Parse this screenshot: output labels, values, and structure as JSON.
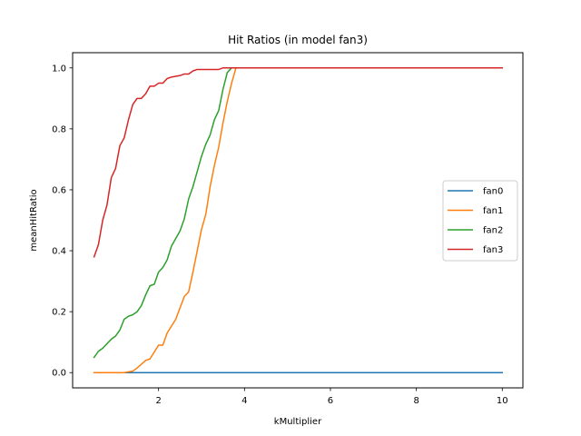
{
  "chart_data": {
    "type": "line",
    "title": "Hit Ratios (in model fan3)",
    "xlabel": "kMultiplier",
    "ylabel": "meanHitRatio",
    "xlim": [
      0.0,
      10.48
    ],
    "ylim": [
      -0.05,
      1.05
    ],
    "xticks": [
      2,
      4,
      6,
      8,
      10
    ],
    "xtick_labels": [
      "2",
      "4",
      "6",
      "8",
      "10"
    ],
    "yticks": [
      0.0,
      0.2,
      0.4,
      0.6,
      0.8,
      1.0
    ],
    "ytick_labels": [
      "0.0",
      "0.2",
      "0.4",
      "0.6",
      "0.8",
      "1.0"
    ],
    "grid": false,
    "legend_position": "center-right",
    "series": [
      {
        "name": "fan0",
        "color": "#1f77b4",
        "points": [
          [
            0.5,
            0.0
          ],
          [
            10.0,
            0.0
          ]
        ]
      },
      {
        "name": "fan1",
        "color": "#ff7f0e",
        "points": [
          [
            0.5,
            0.0
          ],
          [
            1.2,
            0.0
          ],
          [
            1.4,
            0.005
          ],
          [
            1.5,
            0.015
          ],
          [
            1.7,
            0.04
          ],
          [
            1.8,
            0.045
          ],
          [
            2.0,
            0.09
          ],
          [
            2.1,
            0.09
          ],
          [
            2.2,
            0.13
          ],
          [
            2.4,
            0.175
          ],
          [
            2.6,
            0.25
          ],
          [
            2.7,
            0.265
          ],
          [
            2.8,
            0.33
          ],
          [
            3.0,
            0.47
          ],
          [
            3.1,
            0.52
          ],
          [
            3.2,
            0.61
          ],
          [
            3.3,
            0.68
          ],
          [
            3.4,
            0.74
          ],
          [
            3.5,
            0.82
          ],
          [
            3.6,
            0.89
          ],
          [
            3.7,
            0.95
          ],
          [
            3.8,
            1.0
          ],
          [
            4.0,
            1.0
          ],
          [
            10.0,
            1.0
          ]
        ]
      },
      {
        "name": "fan2",
        "color": "#2ca02c",
        "points": [
          [
            0.5,
            0.05
          ],
          [
            0.6,
            0.07
          ],
          [
            0.7,
            0.08
          ],
          [
            0.9,
            0.11
          ],
          [
            1.0,
            0.12
          ],
          [
            1.1,
            0.14
          ],
          [
            1.2,
            0.175
          ],
          [
            1.3,
            0.185
          ],
          [
            1.4,
            0.19
          ],
          [
            1.5,
            0.2
          ],
          [
            1.6,
            0.22
          ],
          [
            1.7,
            0.255
          ],
          [
            1.8,
            0.285
          ],
          [
            1.9,
            0.29
          ],
          [
            2.0,
            0.33
          ],
          [
            2.1,
            0.345
          ],
          [
            2.2,
            0.37
          ],
          [
            2.3,
            0.415
          ],
          [
            2.4,
            0.44
          ],
          [
            2.5,
            0.465
          ],
          [
            2.6,
            0.505
          ],
          [
            2.7,
            0.57
          ],
          [
            2.8,
            0.61
          ],
          [
            2.9,
            0.66
          ],
          [
            3.0,
            0.71
          ],
          [
            3.1,
            0.75
          ],
          [
            3.2,
            0.78
          ],
          [
            3.3,
            0.83
          ],
          [
            3.4,
            0.86
          ],
          [
            3.5,
            0.93
          ],
          [
            3.6,
            0.985
          ],
          [
            3.7,
            1.0
          ],
          [
            3.8,
            1.0
          ],
          [
            10.0,
            1.0
          ]
        ]
      },
      {
        "name": "fan3",
        "color": "#d62728",
        "points": [
          [
            0.5,
            0.38
          ],
          [
            0.6,
            0.42
          ],
          [
            0.7,
            0.5
          ],
          [
            0.8,
            0.55
          ],
          [
            0.9,
            0.64
          ],
          [
            1.0,
            0.67
          ],
          [
            1.1,
            0.745
          ],
          [
            1.2,
            0.77
          ],
          [
            1.3,
            0.83
          ],
          [
            1.4,
            0.88
          ],
          [
            1.5,
            0.9
          ],
          [
            1.6,
            0.9
          ],
          [
            1.7,
            0.915
          ],
          [
            1.8,
            0.94
          ],
          [
            1.9,
            0.94
          ],
          [
            2.0,
            0.95
          ],
          [
            2.1,
            0.95
          ],
          [
            2.2,
            0.965
          ],
          [
            2.3,
            0.97
          ],
          [
            2.5,
            0.975
          ],
          [
            2.6,
            0.98
          ],
          [
            2.7,
            0.98
          ],
          [
            2.8,
            0.99
          ],
          [
            2.9,
            0.995
          ],
          [
            3.0,
            0.995
          ],
          [
            3.4,
            0.995
          ],
          [
            3.5,
            1.0
          ],
          [
            10.0,
            1.0
          ]
        ]
      }
    ]
  }
}
